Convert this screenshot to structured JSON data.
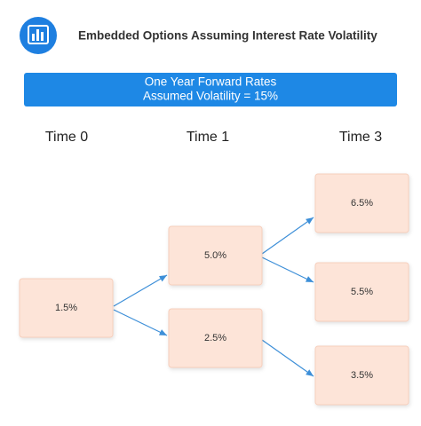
{
  "header": {
    "title": "Embedded Options Assuming Interest Rate Volatility"
  },
  "banner": {
    "lines": [
      "One Year Forward Rates",
      "Assumed Volatility = 15%"
    ]
  },
  "columns": [
    "Time 0",
    "Time 1",
    "Time 3"
  ],
  "nodes": [
    {
      "label": "1.5%"
    },
    {
      "label": "5.0%"
    },
    {
      "label": "2.5%"
    },
    {
      "label": "6.5%"
    },
    {
      "label": "5.5%"
    },
    {
      "label": "3.5%"
    }
  ]
}
